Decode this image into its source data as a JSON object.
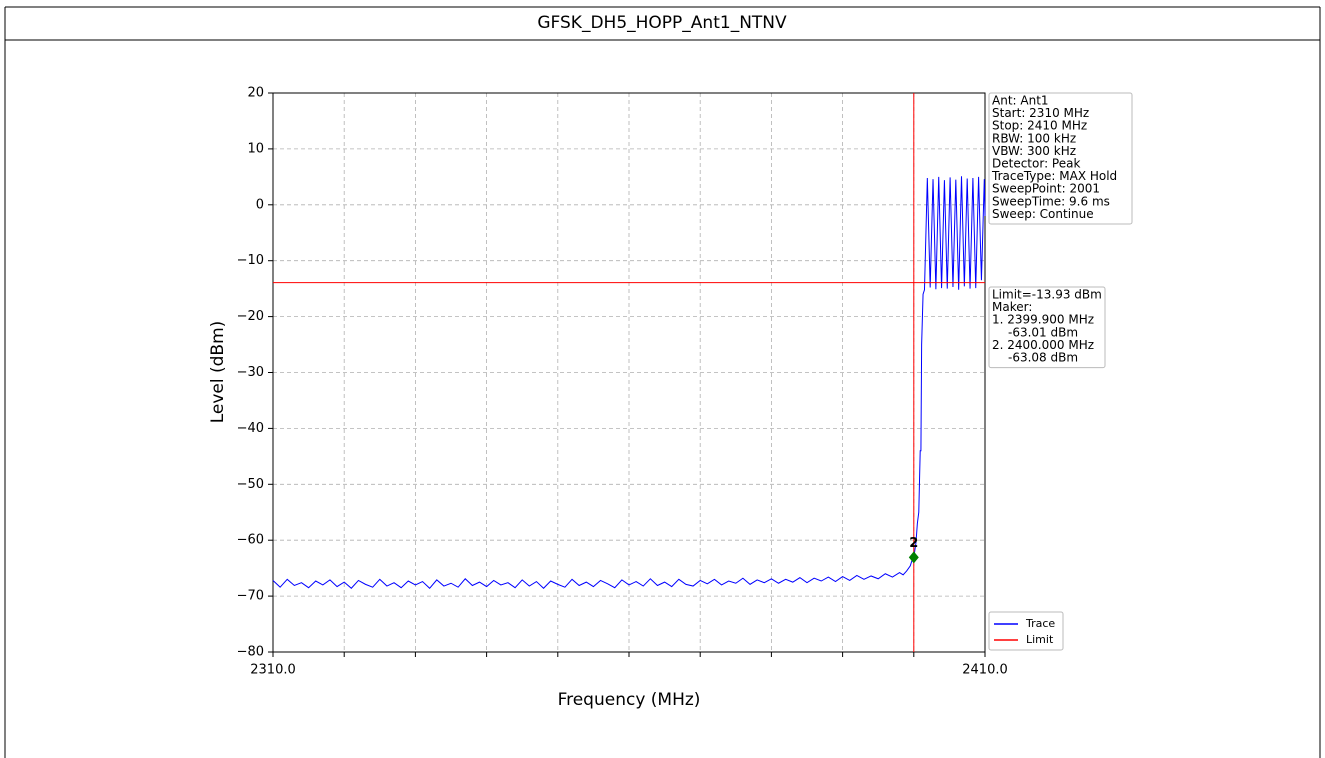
{
  "chart_data": {
    "type": "line",
    "title": "GFSK_DH5_HOPP_Ant1_NTNV",
    "xlabel": "Frequency (MHz)",
    "ylabel": "Level (dBm)",
    "xlim": [
      2310,
      2410
    ],
    "ylim": [
      -80,
      20
    ],
    "xticks": [
      {
        "value": 2310,
        "label": "2310.0"
      },
      {
        "value": 2320,
        "label": null
      },
      {
        "value": 2330,
        "label": null
      },
      {
        "value": 2340,
        "label": null
      },
      {
        "value": 2350,
        "label": null
      },
      {
        "value": 2360,
        "label": null
      },
      {
        "value": 2370,
        "label": null
      },
      {
        "value": 2380,
        "label": null
      },
      {
        "value": 2390,
        "label": null
      },
      {
        "value": 2400,
        "label": null
      },
      {
        "value": 2410,
        "label": "2410.0"
      }
    ],
    "yticks": [
      {
        "value": -80,
        "label": "−80"
      },
      {
        "value": -70,
        "label": "−70"
      },
      {
        "value": -60,
        "label": "−60"
      },
      {
        "value": -50,
        "label": "−50"
      },
      {
        "value": -40,
        "label": "−40"
      },
      {
        "value": -30,
        "label": "−30"
      },
      {
        "value": -20,
        "label": "−20"
      },
      {
        "value": -10,
        "label": "−10"
      },
      0,
      10,
      20
    ],
    "grid": true,
    "series": [
      {
        "name": "Trace",
        "color": "#0000ff",
        "x": [
          2310,
          2311,
          2312,
          2313,
          2314,
          2315,
          2316,
          2317,
          2318,
          2319,
          2320,
          2321,
          2322,
          2323,
          2324,
          2325,
          2326,
          2327,
          2328,
          2329,
          2330,
          2331,
          2332,
          2333,
          2334,
          2335,
          2336,
          2337,
          2338,
          2339,
          2340,
          2341,
          2342,
          2343,
          2344,
          2345,
          2346,
          2347,
          2348,
          2349,
          2350,
          2351,
          2352,
          2353,
          2354,
          2355,
          2356,
          2357,
          2358,
          2359,
          2360,
          2361,
          2362,
          2363,
          2364,
          2365,
          2366,
          2367,
          2368,
          2369,
          2370,
          2371,
          2372,
          2373,
          2374,
          2375,
          2376,
          2377,
          2378,
          2379,
          2380,
          2381,
          2382,
          2383,
          2384,
          2385,
          2386,
          2387,
          2388,
          2389,
          2390,
          2391,
          2392,
          2393,
          2394,
          2395,
          2396,
          2397,
          2398,
          2398.5,
          2399,
          2399.5,
          2399.9,
          2400,
          2400.3,
          2400.5,
          2400.7,
          2400.9,
          2401.0,
          2401.1,
          2401.3,
          2401.5,
          2401.9,
          2402.3,
          2402.7,
          2403.1,
          2403.5,
          2403.9,
          2404.3,
          2404.7,
          2405.1,
          2405.5,
          2405.9,
          2406.3,
          2406.7,
          2407.1,
          2407.5,
          2407.9,
          2408.3,
          2408.7,
          2409.1,
          2409.5,
          2409.9,
          2410
        ],
        "values": [
          -67.2,
          -68.4,
          -67.0,
          -68.1,
          -67.6,
          -68.5,
          -67.3,
          -68.0,
          -67.1,
          -68.3,
          -67.5,
          -68.6,
          -67.2,
          -67.9,
          -68.4,
          -67.0,
          -68.2,
          -67.6,
          -68.5,
          -67.3,
          -68.0,
          -67.4,
          -68.6,
          -67.1,
          -68.2,
          -67.7,
          -68.4,
          -66.9,
          -68.1,
          -67.5,
          -68.3,
          -67.2,
          -68.0,
          -67.6,
          -68.5,
          -67.1,
          -68.2,
          -67.4,
          -68.6,
          -67.3,
          -67.9,
          -68.4,
          -67.0,
          -68.1,
          -67.5,
          -68.3,
          -67.2,
          -67.8,
          -68.5,
          -67.1,
          -68.0,
          -67.4,
          -68.2,
          -66.9,
          -68.1,
          -67.5,
          -68.3,
          -67.0,
          -67.9,
          -68.2,
          -67.2,
          -67.8,
          -67.0,
          -68.0,
          -67.3,
          -67.7,
          -66.8,
          -67.9,
          -67.1,
          -67.6,
          -66.9,
          -67.7,
          -67.0,
          -67.5,
          -66.7,
          -67.6,
          -66.8,
          -67.3,
          -66.6,
          -67.4,
          -66.5,
          -67.2,
          -66.3,
          -67.0,
          -66.4,
          -66.9,
          -66.0,
          -66.6,
          -65.8,
          -66.2,
          -65.5,
          -64.6,
          -63.01,
          -63.08,
          -60.5,
          -57,
          -55,
          -44,
          -44,
          -25,
          -16,
          -15.2,
          4.8,
          -14.8,
          4.6,
          -15.1,
          5.0,
          -14.9,
          4.4,
          -15.0,
          4.9,
          -14.7,
          4.5,
          -15.2,
          5.1,
          -14.6,
          4.7,
          -15.0,
          4.8,
          -14.9,
          5.0,
          -13.5,
          4.6,
          -2.0
        ]
      },
      {
        "name": "Limit",
        "color": "#ff0000"
      }
    ],
    "limit": -13.93,
    "vline_x": 2400,
    "marker": {
      "label": "2",
      "x": 2400,
      "y": -63.08,
      "color": "#008000"
    },
    "info_box": [
      "Ant: Ant1",
      "Start: 2310 MHz",
      "Stop: 2410 MHz",
      "RBW: 100 kHz",
      "VBW: 300 kHz",
      "Detector: Peak",
      "TraceType: MAX Hold",
      "SweepPoint: 2001",
      "SweepTime: 9.6 ms",
      "Sweep: Continue"
    ],
    "marker_box": [
      "Limit=-13.93 dBm",
      "Maker:",
      "1. 2399.900 MHz",
      "-63.01 dBm",
      "2. 2400.000 MHz",
      "-63.08 dBm"
    ]
  }
}
